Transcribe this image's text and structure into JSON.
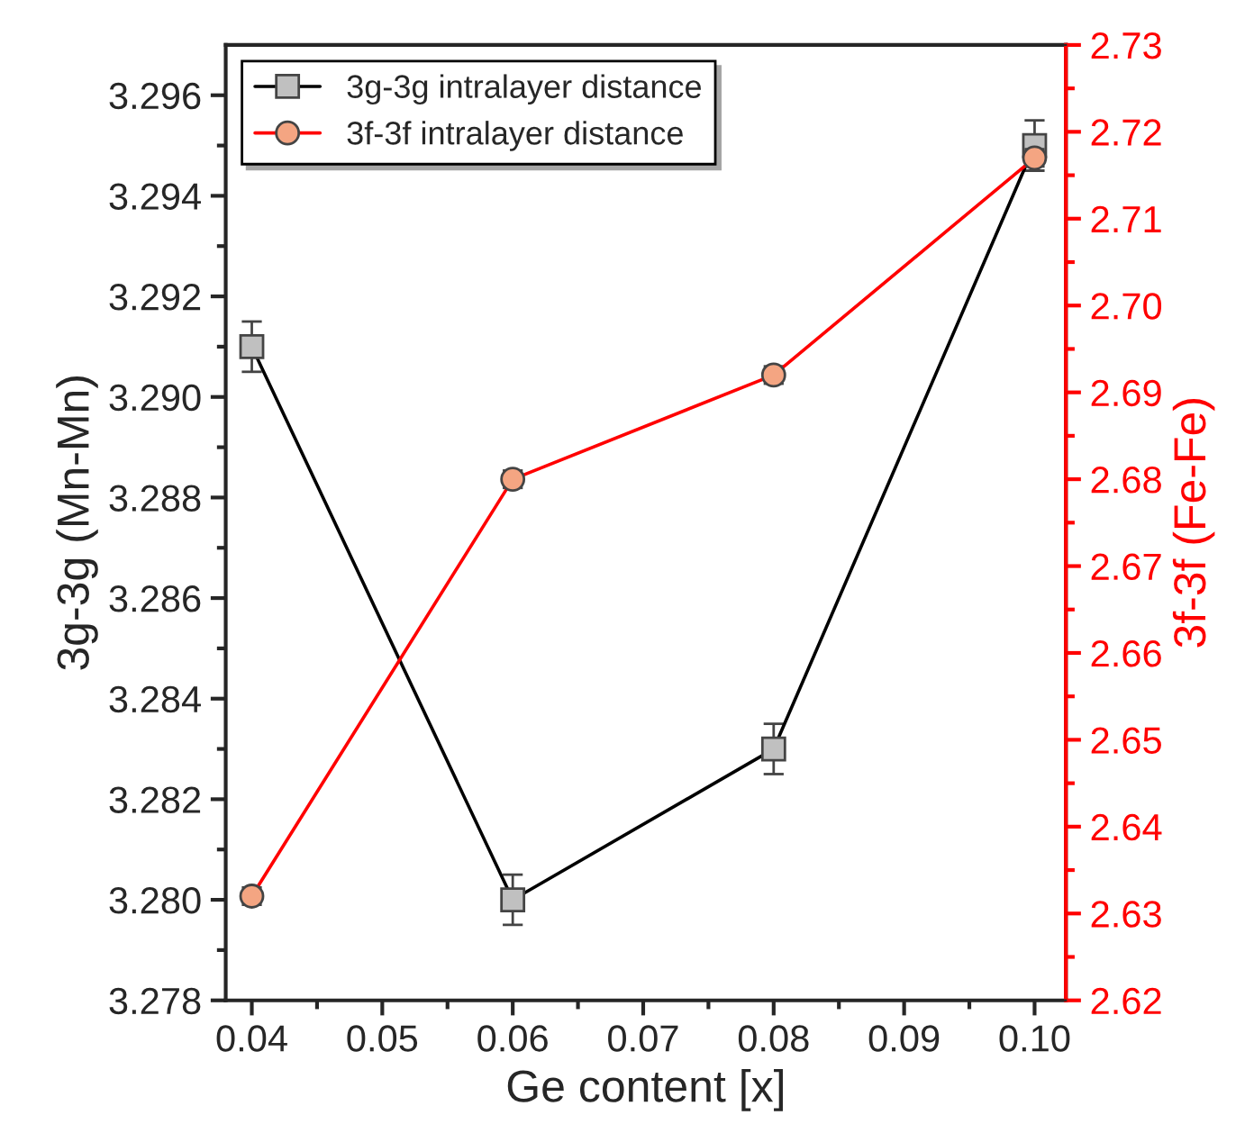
{
  "chart_data": {
    "type": "line",
    "xlabel": "Ge content [x]",
    "ylabel": "3g-3g (Mn-Mn)",
    "y2label": "3f-3f (Fe-Fe)",
    "x": [
      0.04,
      0.06,
      0.08,
      0.1
    ],
    "series": [
      {
        "name": "3g-3g intralayer distance",
        "color": "#000000",
        "marker": "square",
        "values": [
          3.291,
          3.28,
          3.283,
          3.295
        ],
        "errors": [
          0.0005,
          0.0005,
          0.0005,
          0.0005
        ]
      },
      {
        "name": "3f-3f intralayer distance",
        "color": "#ff0000",
        "marker": "circle",
        "axis": "y2",
        "values": [
          2.632,
          2.68,
          2.692,
          2.717
        ],
        "errors": [
          0.001,
          0.001,
          0.001,
          0.001
        ]
      }
    ],
    "xlim": [
      0.038,
      0.1024
    ],
    "xticks": [
      {
        "value": 0.04,
        "label": "0.04"
      },
      {
        "value": 0.05,
        "label": "0.05"
      },
      {
        "value": 0.06,
        "label": "0.06"
      },
      {
        "value": 0.07,
        "label": "0.07"
      },
      {
        "value": 0.08,
        "label": "0.08"
      },
      {
        "value": 0.09,
        "label": "0.09"
      },
      {
        "value": 0.1,
        "label": "0.10"
      }
    ],
    "ylim": [
      3.278,
      3.297
    ],
    "yticks": [
      {
        "value": 3.278,
        "label": "3.278"
      },
      {
        "value": 3.28,
        "label": "3.280"
      },
      {
        "value": 3.282,
        "label": "3.282"
      },
      {
        "value": 3.284,
        "label": "3.284"
      },
      {
        "value": 3.286,
        "label": "3.286"
      },
      {
        "value": 3.288,
        "label": "3.288"
      },
      {
        "value": 3.29,
        "label": "3.290"
      },
      {
        "value": 3.292,
        "label": "3.292"
      },
      {
        "value": 3.294,
        "label": "3.294"
      },
      {
        "value": 3.296,
        "label": "3.296"
      }
    ],
    "y2lim": [
      2.62,
      2.73
    ],
    "y2ticks": [
      {
        "value": 2.62,
        "label": "2.62"
      },
      {
        "value": 2.63,
        "label": "2.63"
      },
      {
        "value": 2.64,
        "label": "2.64"
      },
      {
        "value": 2.65,
        "label": "2.65"
      },
      {
        "value": 2.66,
        "label": "2.66"
      },
      {
        "value": 2.67,
        "label": "2.67"
      },
      {
        "value": 2.68,
        "label": "2.68"
      },
      {
        "value": 2.69,
        "label": "2.69"
      },
      {
        "value": 2.7,
        "label": "2.70"
      },
      {
        "value": 2.71,
        "label": "2.71"
      },
      {
        "value": 2.72,
        "label": "2.72"
      },
      {
        "value": 2.73,
        "label": "2.73"
      }
    ],
    "grid": false,
    "legend": "top left",
    "line_style": "solid"
  }
}
